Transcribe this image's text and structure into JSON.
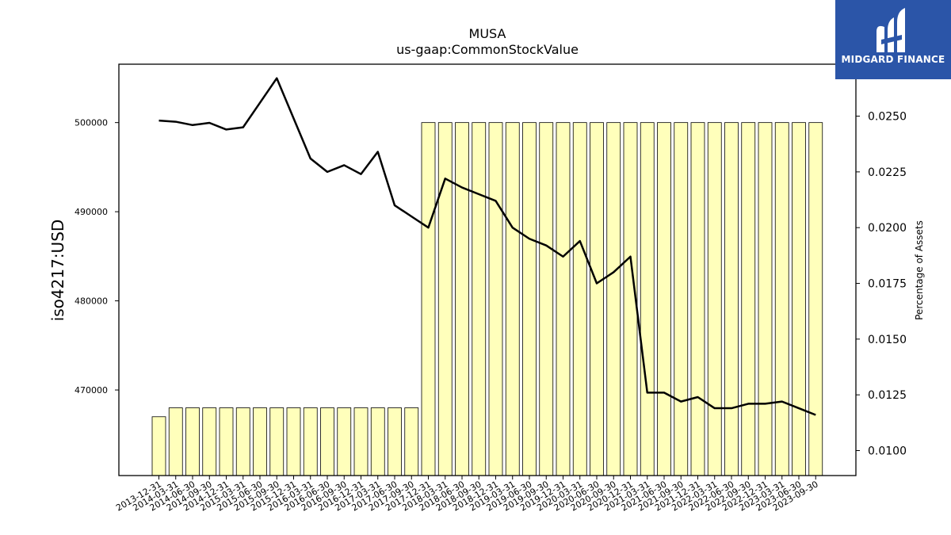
{
  "logo": {
    "name": "midgard-finance-logo",
    "text": "MIDGARD FINANCE"
  },
  "chart_data": {
    "type": "bar",
    "title": "MUSA",
    "subtitle": "us-gaap:CommonStockValue",
    "ylabel": "iso4217:USD",
    "y2label": "Percentage of Assets",
    "categories": [
      "2013-12-31",
      "2014-03-31",
      "2014-06-30",
      "2014-09-30",
      "2014-12-31",
      "2015-03-31",
      "2015-06-30",
      "2015-09-30",
      "2015-12-31",
      "2016-03-31",
      "2016-06-30",
      "2016-09-30",
      "2016-12-31",
      "2017-03-31",
      "2017-06-30",
      "2017-09-30",
      "2017-12-31",
      "2018-03-31",
      "2018-06-30",
      "2018-09-30",
      "2018-12-31",
      "2019-03-31",
      "2019-06-30",
      "2019-09-30",
      "2019-12-31",
      "2020-03-31",
      "2020-06-30",
      "2020-09-30",
      "2020-12-31",
      "2021-03-31",
      "2021-06-30",
      "2021-09-30",
      "2021-12-31",
      "2022-03-31",
      "2022-06-30",
      "2022-09-30",
      "2022-12-31",
      "2023-03-31",
      "2023-06-30",
      "2023-09-30"
    ],
    "series": [
      {
        "name": "",
        "axis": "left",
        "kind": "bar",
        "color": "#ffffbb",
        "values": [
          467000,
          468000,
          468000,
          468000,
          468000,
          468000,
          468000,
          468000,
          468000,
          468000,
          468000,
          468000,
          468000,
          468000,
          468000,
          468000,
          500000,
          500000,
          500000,
          500000,
          500000,
          500000,
          500000,
          500000,
          500000,
          500000,
          500000,
          500000,
          500000,
          500000,
          500000,
          500000,
          500000,
          500000,
          500000,
          500000,
          500000,
          500000,
          500000,
          500000
        ]
      },
      {
        "name": "",
        "axis": "right",
        "kind": "line",
        "color": "#000000",
        "values": [
          0.0248,
          0.02475,
          0.0246,
          0.0247,
          0.0244,
          0.0245,
          0.0256,
          0.0267,
          0.0249,
          0.0231,
          0.0225,
          0.0228,
          0.0224,
          0.0234,
          0.021,
          0.0205,
          0.02,
          0.0222,
          0.0218,
          0.0215,
          0.0212,
          0.02,
          0.0195,
          0.0192,
          0.0187,
          0.0194,
          0.0175,
          0.018,
          0.0187,
          0.0126,
          0.0126,
          0.0122,
          0.0124,
          0.0119,
          0.0119,
          0.0121,
          0.0121,
          0.0122,
          0.0119,
          0.0116
        ]
      }
    ],
    "ylim": [
      460400,
      506550
    ],
    "y2lim": [
      0.00888,
      0.02733
    ],
    "yticks": [
      470000,
      480000,
      490000,
      500000
    ],
    "ytick_labels": [
      "470000",
      "480000",
      "490000",
      "500000"
    ],
    "y2ticks": [
      0.01,
      0.0125,
      0.015,
      0.0175,
      0.02,
      0.0225,
      0.025
    ],
    "y2tick_labels": [
      "0.0100",
      "0.0125",
      "0.0150",
      "0.0175",
      "0.0200",
      "0.0225",
      "0.0250"
    ],
    "grid": false,
    "legend": "none"
  }
}
